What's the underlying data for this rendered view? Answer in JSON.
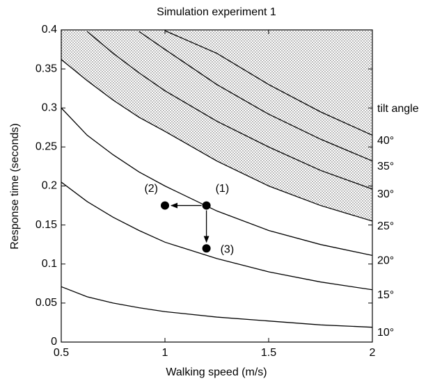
{
  "chart_data": {
    "type": "line",
    "title": "Simulation experiment 1",
    "xlabel": "Walking speed (m/s)",
    "ylabel": "Response time (seconds)",
    "legend_title": "tilt angle",
    "x": [
      0.5,
      0.625,
      0.75,
      0.875,
      1.0,
      1.25,
      1.5,
      1.75,
      2.0
    ],
    "series": [
      {
        "name": "10°",
        "color": "#000000",
        "values": [
          0.071,
          0.058,
          0.05,
          0.044,
          0.039,
          0.032,
          0.027,
          0.022,
          0.019
        ]
      },
      {
        "name": "15°",
        "color": "#000000",
        "values": [
          0.205,
          0.18,
          0.16,
          0.143,
          0.128,
          0.107,
          0.09,
          0.077,
          0.067
        ]
      },
      {
        "name": "20°",
        "color": "#000000",
        "values": [
          0.3,
          0.265,
          0.24,
          0.218,
          0.2,
          0.168,
          0.143,
          0.125,
          0.111
        ]
      },
      {
        "name": "25°",
        "color": "#000000",
        "values": [
          0.362,
          0.335,
          0.31,
          0.288,
          0.27,
          0.232,
          0.2,
          0.175,
          0.155
        ]
      },
      {
        "name": "30°",
        "color": "#000000",
        "values": [
          null,
          0.398,
          0.37,
          0.345,
          0.322,
          0.283,
          0.25,
          0.22,
          0.196
        ]
      },
      {
        "name": "35°",
        "color": "#000000",
        "values": [
          null,
          null,
          null,
          0.398,
          0.375,
          0.33,
          0.292,
          0.26,
          0.232
        ]
      },
      {
        "name": "40°",
        "color": "#000000",
        "values": [
          null,
          null,
          null,
          null,
          0.399,
          0.37,
          0.33,
          0.295,
          0.265
        ]
      }
    ],
    "shade_above": 3,
    "points": [
      {
        "label": "(1)",
        "x": 1.2,
        "y": 0.175
      },
      {
        "label": "(2)",
        "x": 1.0,
        "y": 0.175
      },
      {
        "label": "(3)",
        "x": 1.2,
        "y": 0.12
      }
    ],
    "xlim": [
      0.5,
      2
    ],
    "xticks": [
      0.5,
      1,
      1.5,
      2
    ],
    "ylim": [
      0,
      0.4
    ],
    "yticks": [
      0,
      0.05,
      0.1,
      0.15,
      0.2,
      0.25,
      0.3,
      0.35,
      0.4
    ],
    "grid": false
  }
}
